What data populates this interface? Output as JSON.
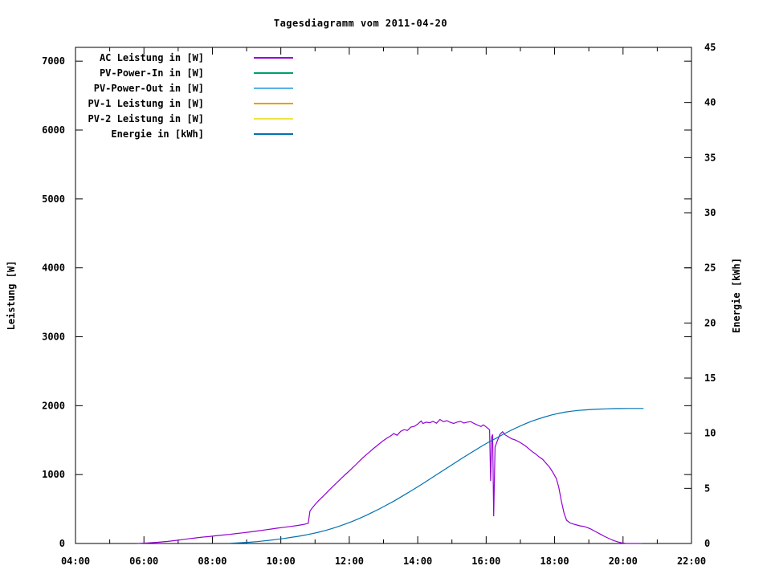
{
  "chart_data": {
    "type": "line",
    "title": "Tagesdiagramm vom 2011-04-20",
    "grid": false,
    "legend_position": "top-left-inside",
    "axes": {
      "x": {
        "range": [
          4,
          22
        ],
        "tick_hours": [
          4,
          6,
          8,
          10,
          12,
          14,
          16,
          18,
          20,
          22
        ],
        "tick_labels": [
          "04:00",
          "06:00",
          "08:00",
          "10:00",
          "12:00",
          "14:00",
          "16:00",
          "18:00",
          "20:00",
          "22:00"
        ],
        "minor_tick_hours": [
          5,
          7,
          9,
          11,
          13,
          15,
          17,
          19,
          21
        ]
      },
      "y": {
        "title": "Leistung [W]",
        "range": [
          0,
          7200
        ],
        "tick_values": [
          0,
          1000,
          2000,
          3000,
          4000,
          5000,
          6000,
          7000
        ],
        "tick_labels": [
          "0",
          "1000",
          "2000",
          "3000",
          "4000",
          "5000",
          "6000",
          "7000"
        ]
      },
      "y2": {
        "title": "Energie [kWh]",
        "range": [
          0,
          45
        ],
        "tick_values": [
          0,
          5,
          10,
          15,
          20,
          25,
          30,
          35,
          40,
          45
        ],
        "tick_labels": [
          "0",
          "5",
          "10",
          "15",
          "20",
          "25",
          "30",
          "35",
          "40",
          "45"
        ]
      }
    },
    "series": [
      {
        "name": "AC Leistung in [W]",
        "color": "#9400d3",
        "axis": "y",
        "points": [
          [
            5.8,
            0
          ],
          [
            6.1,
            8
          ],
          [
            6.4,
            18
          ],
          [
            6.7,
            30
          ],
          [
            6.9,
            42
          ],
          [
            7.1,
            55
          ],
          [
            7.3,
            68
          ],
          [
            7.5,
            80
          ],
          [
            7.7,
            92
          ],
          [
            7.9,
            100
          ],
          [
            8.1,
            112
          ],
          [
            8.3,
            122
          ],
          [
            8.5,
            132
          ],
          [
            8.7,
            145
          ],
          [
            8.9,
            155
          ],
          [
            9.1,
            168
          ],
          [
            9.3,
            180
          ],
          [
            9.5,
            195
          ],
          [
            9.7,
            208
          ],
          [
            9.9,
            222
          ],
          [
            10.1,
            235
          ],
          [
            10.3,
            248
          ],
          [
            10.5,
            262
          ],
          [
            10.65,
            275
          ],
          [
            10.8,
            292
          ],
          [
            10.85,
            470
          ],
          [
            10.9,
            505
          ],
          [
            11.0,
            565
          ],
          [
            11.1,
            620
          ],
          [
            11.2,
            668
          ],
          [
            11.3,
            718
          ],
          [
            11.4,
            768
          ],
          [
            11.5,
            818
          ],
          [
            11.6,
            865
          ],
          [
            11.7,
            912
          ],
          [
            11.8,
            962
          ],
          [
            11.9,
            1008
          ],
          [
            12.0,
            1052
          ],
          [
            12.1,
            1100
          ],
          [
            12.2,
            1148
          ],
          [
            12.3,
            1198
          ],
          [
            12.4,
            1245
          ],
          [
            12.5,
            1290
          ],
          [
            12.6,
            1332
          ],
          [
            12.7,
            1375
          ],
          [
            12.8,
            1415
          ],
          [
            12.9,
            1455
          ],
          [
            13.0,
            1495
          ],
          [
            13.1,
            1530
          ],
          [
            13.2,
            1558
          ],
          [
            13.3,
            1595
          ],
          [
            13.4,
            1570
          ],
          [
            13.5,
            1628
          ],
          [
            13.6,
            1652
          ],
          [
            13.7,
            1640
          ],
          [
            13.8,
            1688
          ],
          [
            13.9,
            1700
          ],
          [
            14.0,
            1732
          ],
          [
            14.1,
            1778
          ],
          [
            14.15,
            1742
          ],
          [
            14.25,
            1760
          ],
          [
            14.35,
            1752
          ],
          [
            14.45,
            1772
          ],
          [
            14.55,
            1745
          ],
          [
            14.65,
            1800
          ],
          [
            14.75,
            1768
          ],
          [
            14.85,
            1782
          ],
          [
            14.95,
            1758
          ],
          [
            15.05,
            1742
          ],
          [
            15.15,
            1762
          ],
          [
            15.25,
            1772
          ],
          [
            15.35,
            1748
          ],
          [
            15.45,
            1762
          ],
          [
            15.55,
            1768
          ],
          [
            15.65,
            1740
          ],
          [
            15.75,
            1718
          ],
          [
            15.85,
            1698
          ],
          [
            15.92,
            1722
          ],
          [
            16.0,
            1692
          ],
          [
            16.06,
            1668
          ],
          [
            16.1,
            1648
          ],
          [
            16.13,
            905
          ],
          [
            16.16,
            1545
          ],
          [
            16.19,
            1582
          ],
          [
            16.22,
            395
          ],
          [
            16.26,
            1398
          ],
          [
            16.32,
            1482
          ],
          [
            16.4,
            1582
          ],
          [
            16.48,
            1622
          ],
          [
            16.55,
            1578
          ],
          [
            16.65,
            1548
          ],
          [
            16.75,
            1518
          ],
          [
            16.85,
            1502
          ],
          [
            16.95,
            1478
          ],
          [
            17.05,
            1448
          ],
          [
            17.15,
            1415
          ],
          [
            17.25,
            1372
          ],
          [
            17.35,
            1332
          ],
          [
            17.45,
            1298
          ],
          [
            17.55,
            1255
          ],
          [
            17.65,
            1222
          ],
          [
            17.75,
            1165
          ],
          [
            17.85,
            1108
          ],
          [
            17.95,
            1032
          ],
          [
            18.05,
            942
          ],
          [
            18.12,
            818
          ],
          [
            18.2,
            608
          ],
          [
            18.28,
            432
          ],
          [
            18.35,
            338
          ],
          [
            18.45,
            298
          ],
          [
            18.55,
            282
          ],
          [
            18.65,
            268
          ],
          [
            18.75,
            255
          ],
          [
            18.85,
            248
          ],
          [
            18.95,
            232
          ],
          [
            19.05,
            212
          ],
          [
            19.15,
            185
          ],
          [
            19.25,
            158
          ],
          [
            19.35,
            132
          ],
          [
            19.45,
            105
          ],
          [
            19.55,
            82
          ],
          [
            19.65,
            58
          ],
          [
            19.75,
            38
          ],
          [
            19.85,
            22
          ],
          [
            19.95,
            10
          ],
          [
            20.05,
            3
          ],
          [
            20.15,
            0
          ],
          [
            20.55,
            0
          ]
        ]
      },
      {
        "name": "PV-Power-In in [W]",
        "color": "#009e73",
        "axis": "y",
        "points": []
      },
      {
        "name": "PV-Power-Out in [W]",
        "color": "#56b4e9",
        "axis": "y",
        "points": []
      },
      {
        "name": "PV-1 Leistung in [W]",
        "color": "#e69f00",
        "axis": "y",
        "points": []
      },
      {
        "name": "PV-2 Leistung in [W]",
        "color": "#f0e442",
        "axis": "y",
        "points": []
      },
      {
        "name": "Energie in [kWh]",
        "color": "#0072b2",
        "axis": "y2",
        "points": [
          [
            8.5,
            0.02
          ],
          [
            8.7,
            0.05
          ],
          [
            8.9,
            0.08
          ],
          [
            9.1,
            0.12
          ],
          [
            9.3,
            0.17
          ],
          [
            9.5,
            0.23
          ],
          [
            9.7,
            0.3
          ],
          [
            9.9,
            0.38
          ],
          [
            10.1,
            0.46
          ],
          [
            10.3,
            0.55
          ],
          [
            10.5,
            0.65
          ],
          [
            10.7,
            0.76
          ],
          [
            10.9,
            0.88
          ],
          [
            11.1,
            1.02
          ],
          [
            11.3,
            1.18
          ],
          [
            11.5,
            1.36
          ],
          [
            11.7,
            1.56
          ],
          [
            11.9,
            1.78
          ],
          [
            12.1,
            2.02
          ],
          [
            12.3,
            2.28
          ],
          [
            12.5,
            2.56
          ],
          [
            12.7,
            2.86
          ],
          [
            12.9,
            3.17
          ],
          [
            13.1,
            3.5
          ],
          [
            13.3,
            3.84
          ],
          [
            13.5,
            4.2
          ],
          [
            13.7,
            4.57
          ],
          [
            13.9,
            4.95
          ],
          [
            14.1,
            5.34
          ],
          [
            14.3,
            5.73
          ],
          [
            14.5,
            6.13
          ],
          [
            14.7,
            6.53
          ],
          [
            14.9,
            6.93
          ],
          [
            15.1,
            7.33
          ],
          [
            15.3,
            7.73
          ],
          [
            15.5,
            8.12
          ],
          [
            15.7,
            8.5
          ],
          [
            15.9,
            8.88
          ],
          [
            16.1,
            9.24
          ],
          [
            16.3,
            9.56
          ],
          [
            16.5,
            9.9
          ],
          [
            16.7,
            10.22
          ],
          [
            16.9,
            10.52
          ],
          [
            17.1,
            10.8
          ],
          [
            17.3,
            11.05
          ],
          [
            17.5,
            11.27
          ],
          [
            17.7,
            11.47
          ],
          [
            17.9,
            11.64
          ],
          [
            18.1,
            11.79
          ],
          [
            18.3,
            11.91
          ],
          [
            18.5,
            12.0
          ],
          [
            18.7,
            12.07
          ],
          [
            18.9,
            12.12
          ],
          [
            19.1,
            12.16
          ],
          [
            19.3,
            12.19
          ],
          [
            19.5,
            12.21
          ],
          [
            19.7,
            12.23
          ],
          [
            19.9,
            12.24
          ],
          [
            20.1,
            12.25
          ],
          [
            20.35,
            12.25
          ],
          [
            20.6,
            12.25
          ]
        ]
      }
    ]
  }
}
